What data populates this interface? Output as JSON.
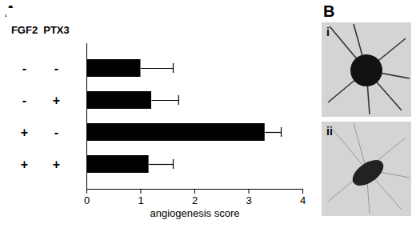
{
  "chart_data": {
    "type": "bar",
    "orientation": "horizontal",
    "panel": "A",
    "categories": [
      null,
      null,
      null,
      null
    ],
    "factor_table": {
      "columns": [
        "FGF2",
        "PTX3"
      ],
      "rows": [
        [
          "-",
          "-"
        ],
        [
          "-",
          "+"
        ],
        [
          "+",
          "-"
        ],
        [
          "+",
          "+"
        ]
      ]
    },
    "values": [
      1.0,
      1.2,
      3.3,
      1.15
    ],
    "error_plus": [
      0.6,
      0.5,
      0.3,
      0.45
    ],
    "color": "#000000",
    "xlabel": "angiogenesis score",
    "xlim": [
      0,
      4
    ],
    "xticks": [
      0,
      1,
      2,
      3,
      4
    ]
  },
  "images": {
    "panel": "B",
    "labels": [
      "i",
      "ii"
    ]
  }
}
